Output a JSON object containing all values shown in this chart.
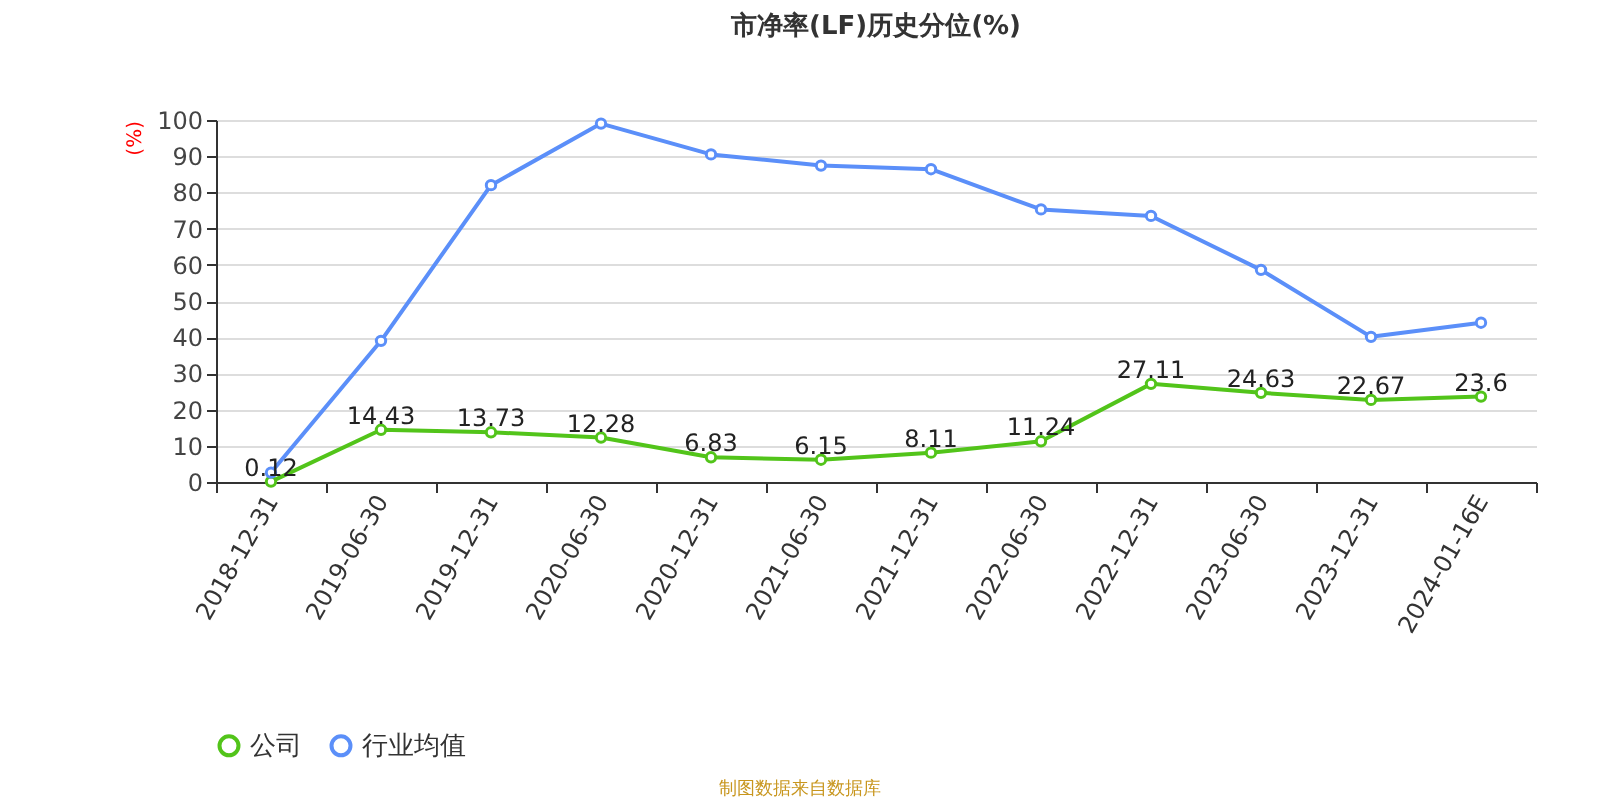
{
  "chart_data": {
    "type": "line",
    "title": "市净率(LF)历史分位(%)",
    "ylabel": "(%)",
    "categories": [
      "2018-12-31",
      "2019-06-30",
      "2019-12-31",
      "2020-06-30",
      "2020-12-31",
      "2021-06-30",
      "2021-12-31",
      "2022-06-30",
      "2022-12-31",
      "2023-06-30",
      "2023-12-31",
      "2024-01-16E"
    ],
    "series": [
      {
        "name": "公司",
        "color": "#52c41a",
        "values": [
          0.12,
          14.43,
          13.73,
          12.28,
          6.83,
          6.15,
          8.11,
          11.24,
          27.11,
          24.63,
          22.67,
          23.6
        ],
        "data_labels": true
      },
      {
        "name": "行业均值",
        "color": "#5b8ff9",
        "values": [
          2.6,
          39,
          82,
          99,
          90.5,
          87.4,
          86.4,
          75.3,
          73.5,
          58.6,
          40.1,
          44
        ]
      }
    ],
    "ylim": [
      0,
      100
    ],
    "yticks": [
      0,
      10,
      20,
      30,
      40,
      50,
      60,
      70,
      80,
      90,
      100
    ],
    "grid": "y",
    "legend": "bottom",
    "marker": "circle",
    "annotations": [
      "制图数据来自数据库"
    ]
  }
}
